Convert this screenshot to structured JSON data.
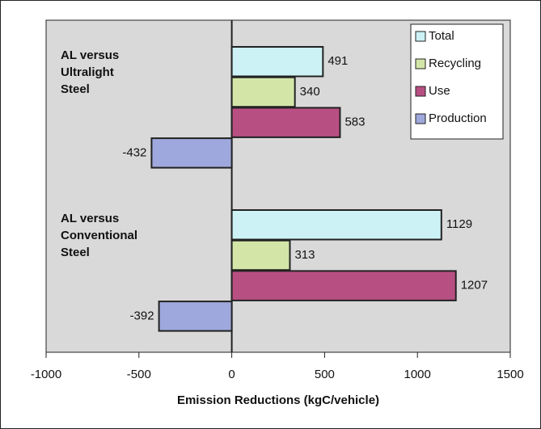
{
  "chart_data": {
    "type": "bar",
    "orientation": "horizontal",
    "xlabel": "Emission Reductions (kgC/vehicle)",
    "categories": [
      "AL versus Ultralight Steel",
      "AL versus Conventional Steel"
    ],
    "series": [
      {
        "name": "Total",
        "color": "#ccf2f5",
        "values": [
          491,
          1129
        ]
      },
      {
        "name": "Recycling",
        "color": "#d3e6a8",
        "values": [
          340,
          313
        ]
      },
      {
        "name": "Use",
        "color": "#b84f82",
        "values": [
          583,
          1207
        ]
      },
      {
        "name": "Production",
        "color": "#9ea8dc",
        "values": [
          -432,
          -392
        ]
      }
    ],
    "xlim": [
      -1000,
      1500
    ],
    "xticks": [
      -1000,
      -500,
      0,
      500,
      1000,
      1500
    ],
    "legend": "upper right"
  }
}
